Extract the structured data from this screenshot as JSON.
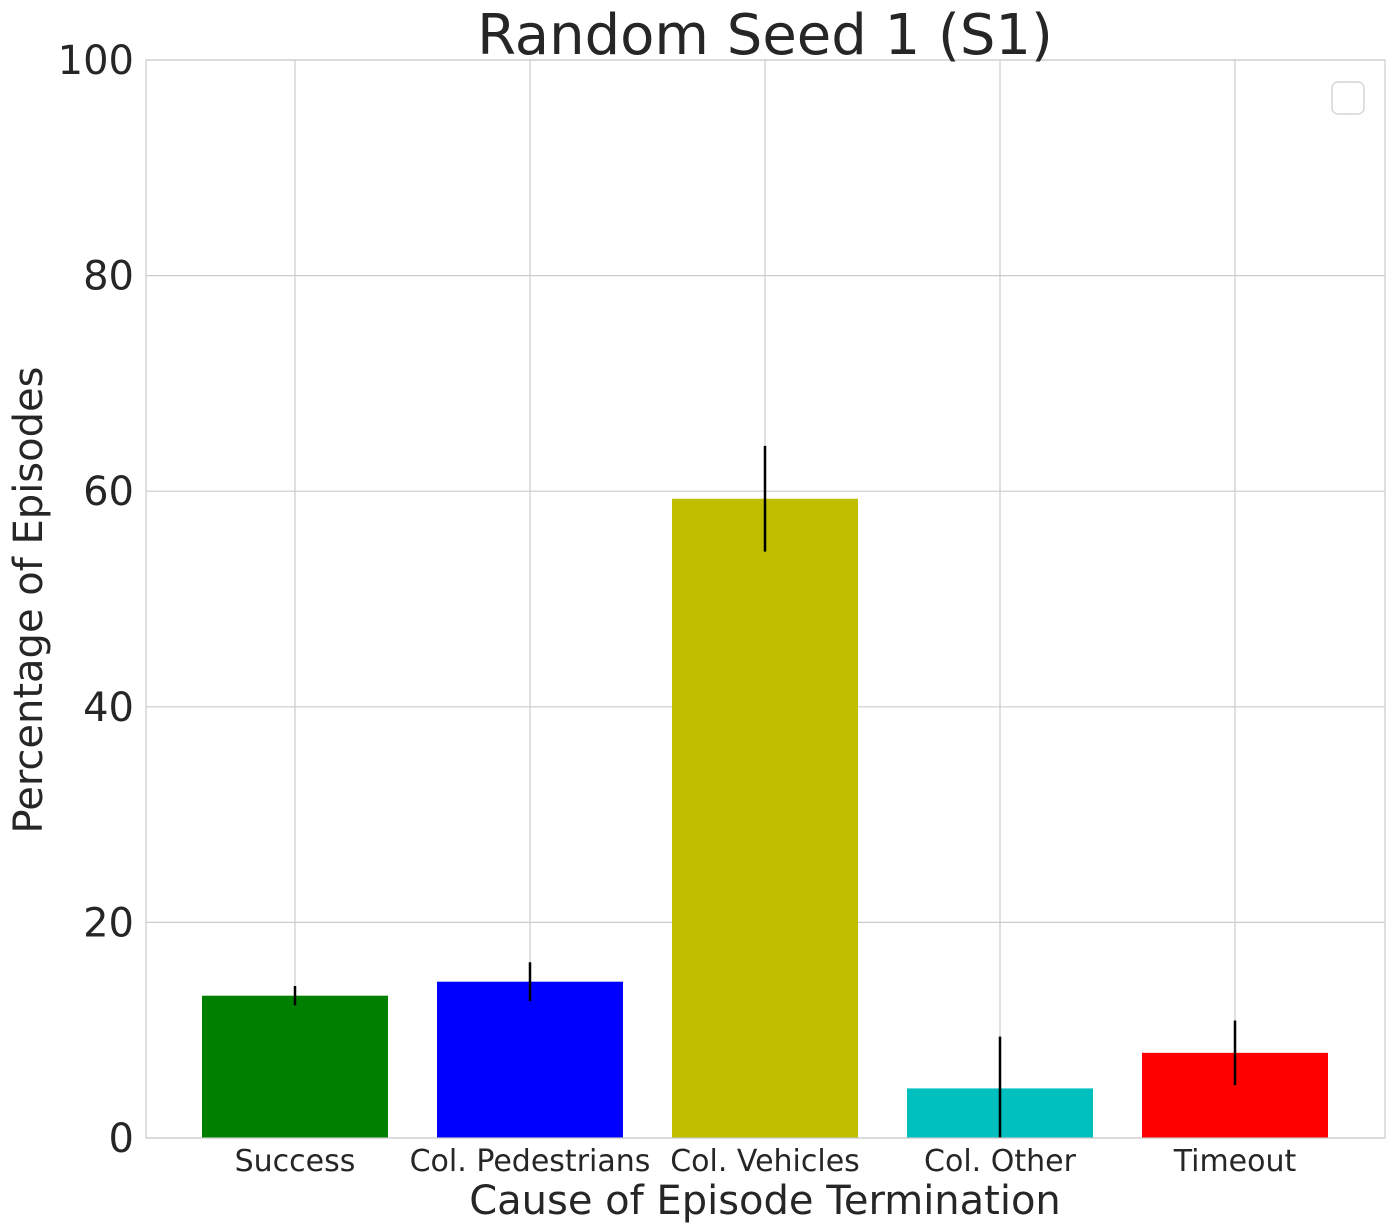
{
  "chart_data": {
    "type": "bar",
    "title": "Random Seed 1 (S1)",
    "xlabel": "Cause of Episode Termination",
    "ylabel": "Percentage of Episodes",
    "categories": [
      "Success",
      "Col. Pedestrians",
      "Col. Vehicles",
      "Col. Other",
      "Timeout"
    ],
    "values": [
      13.2,
      14.5,
      59.3,
      4.6,
      7.9
    ],
    "errors": [
      0.9,
      1.8,
      4.9,
      4.8,
      3.0
    ],
    "colors": [
      "#008000",
      "#0000ff",
      "#bfbf00",
      "#00bfbf",
      "#ff0000"
    ],
    "ylim": [
      0,
      100
    ],
    "yticks": [
      "0",
      "20",
      "40",
      "60",
      "80",
      "100"
    ],
    "grid": true,
    "legend": {
      "position": "top-right",
      "entries": []
    }
  }
}
